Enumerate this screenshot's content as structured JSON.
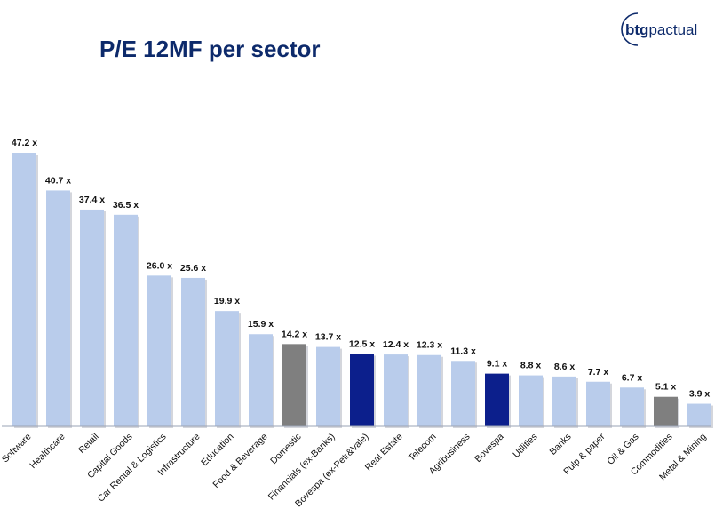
{
  "title": "P/E 12MF per sector",
  "logo": {
    "part1": "btg",
    "part2": "pactual"
  },
  "colors": {
    "default": "#b9cceb",
    "highlight_gray": "#7f7f7f",
    "highlight_navy": "#0c1f8c",
    "title": "#0d2a6b"
  },
  "chart_data": {
    "type": "bar",
    "title": "P/E 12MF per sector",
    "value_suffix": " x",
    "categories": [
      "Software",
      "Healthcare",
      "Retail",
      "Capital Goods",
      "Car Rental & Logistics",
      "Infrastructure",
      "Education",
      "Food & Beverage",
      "Domestic",
      "Financials (ex-Banks)",
      "Bovespa (ex-Petr&Vale)",
      "Real Estate",
      "Telecom",
      "Agribusiness",
      "Bovespa",
      "Utilities",
      "Banks",
      "Pulp & paper",
      "Oil & Gas",
      "Commodities",
      "Metal & Mining"
    ],
    "values": [
      47.2,
      40.7,
      37.4,
      36.5,
      26.0,
      25.6,
      19.9,
      15.9,
      14.2,
      13.7,
      12.5,
      12.4,
      12.3,
      11.3,
      9.1,
      8.8,
      8.6,
      7.7,
      6.7,
      5.1,
      3.9
    ],
    "labels": [
      "47.2 x",
      "40.7 x",
      "37.4 x",
      "36.5 x",
      "26.0 x",
      "25.6 x",
      "19.9 x",
      "15.9 x",
      "14.2 x",
      "13.7 x",
      "12.5 x",
      "12.4 x",
      "12.3 x",
      "11.3 x",
      "9.1 x",
      "8.8 x",
      "8.6 x",
      "7.7 x",
      "6.7 x",
      "5.1 x",
      "3.9 x"
    ],
    "bar_colors": [
      "default",
      "default",
      "default",
      "default",
      "default",
      "default",
      "default",
      "default",
      "highlight_gray",
      "default",
      "highlight_navy",
      "default",
      "default",
      "default",
      "highlight_navy",
      "default",
      "default",
      "default",
      "default",
      "highlight_gray",
      "default"
    ],
    "ylim": [
      0,
      47.2
    ],
    "grid": false,
    "legend": "none",
    "xlabel": "",
    "ylabel": ""
  }
}
